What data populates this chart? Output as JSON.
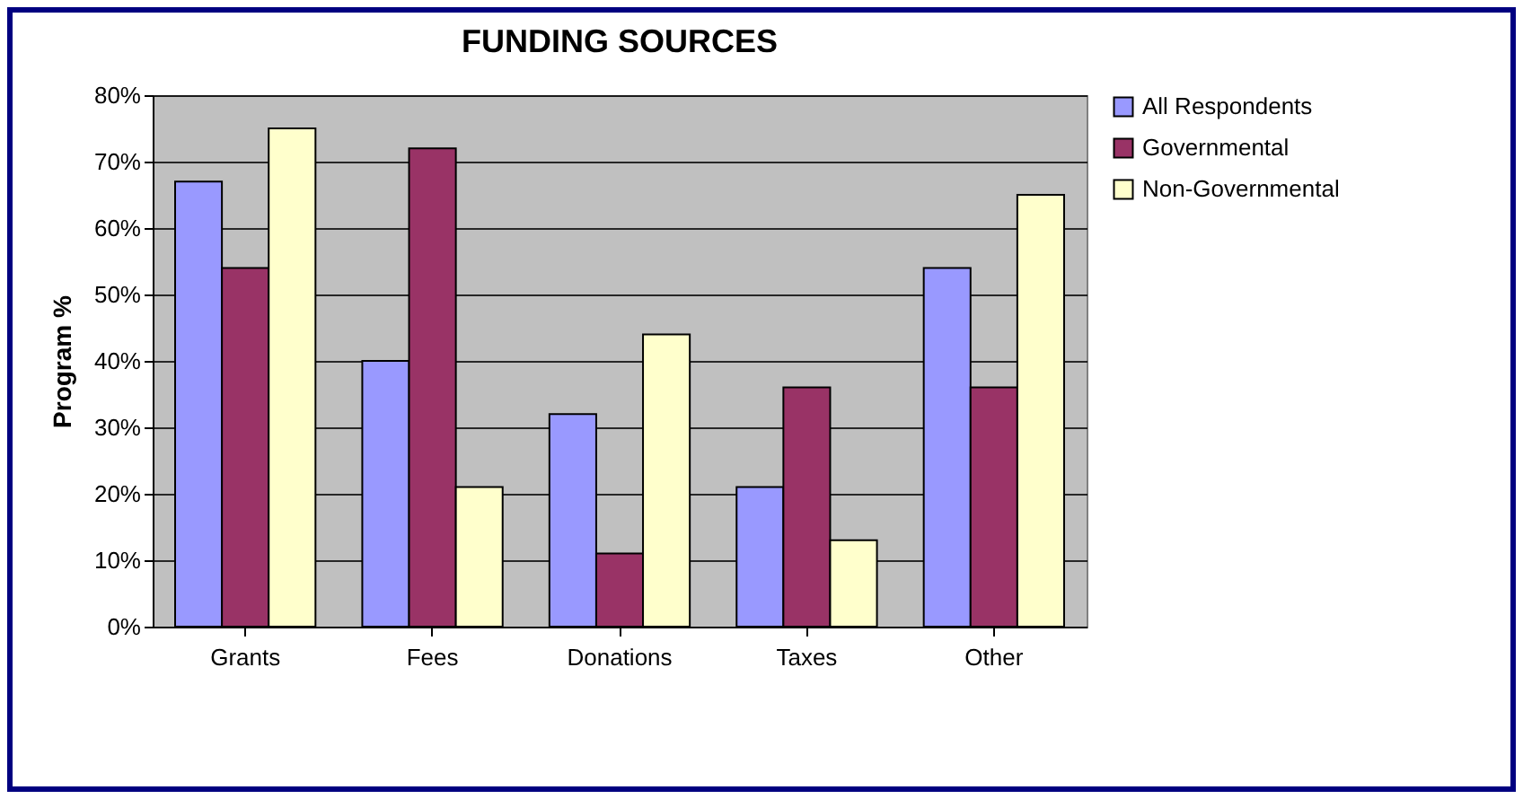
{
  "chart_data": {
    "type": "bar",
    "title": "FUNDING SOURCES",
    "ylabel": "Program %",
    "categories": [
      "Grants",
      "Fees",
      "Donations",
      "Taxes",
      "Other"
    ],
    "series": [
      {
        "name": "All Respondents",
        "color": "#9999ff",
        "values": [
          67,
          40,
          32,
          21,
          54
        ]
      },
      {
        "name": "Governmental",
        "color": "#993366",
        "values": [
          54,
          72,
          11,
          36,
          36
        ]
      },
      {
        "name": "Non-Governmental",
        "color": "#ffffcc",
        "values": [
          75,
          21,
          44,
          13,
          65
        ]
      }
    ],
    "ylim": [
      0,
      80
    ],
    "yticks": [
      {
        "value": 0,
        "label": "0%"
      },
      {
        "value": 10,
        "label": "10%"
      },
      {
        "value": 20,
        "label": "20%"
      },
      {
        "value": 30,
        "label": "30%"
      },
      {
        "value": 40,
        "label": "40%"
      },
      {
        "value": 50,
        "label": "50%"
      },
      {
        "value": 60,
        "label": "60%"
      },
      {
        "value": 70,
        "label": "70%"
      },
      {
        "value": 80,
        "label": "80%"
      }
    ],
    "grid": "y",
    "legend": "right"
  }
}
